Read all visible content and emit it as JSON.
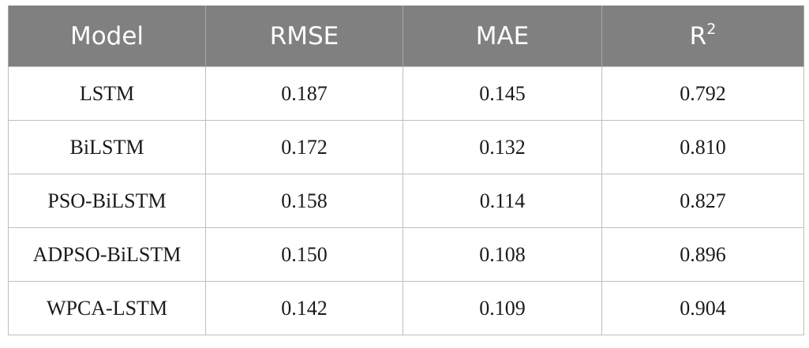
{
  "table": {
    "headers": [
      {
        "text": "Model",
        "sup": ""
      },
      {
        "text": "RMSE",
        "sup": ""
      },
      {
        "text": "MAE",
        "sup": ""
      },
      {
        "text": "R",
        "sup": "2"
      }
    ],
    "rows": [
      [
        "LSTM",
        "0.187",
        "0.145",
        "0.792"
      ],
      [
        "BiLSTM",
        "0.172",
        "0.132",
        "0.810"
      ],
      [
        "PSO-BiLSTM",
        "0.158",
        "0.114",
        "0.827"
      ],
      [
        "ADPSO-BiLSTM",
        "0.150",
        "0.108",
        "0.896"
      ],
      [
        "WPCA-LSTM",
        "0.142",
        "0.109",
        "0.904"
      ]
    ],
    "colors": {
      "header_bg": "#7f807f",
      "header_text": "#ffffff",
      "grid": "#bfbfbf"
    }
  }
}
